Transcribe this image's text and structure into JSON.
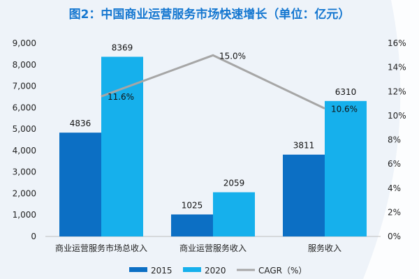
{
  "title": "图2：中国商业运营服务市场快速增长（单位：亿元）",
  "chart_data": {
    "type": "bar",
    "title": "图2：中国商业运营服务市场快速增长（单位：亿元）",
    "categories": [
      "商业运营服务市场总收入",
      "商业运营服务收入",
      "服务收入"
    ],
    "series": [
      {
        "name": "2015",
        "type": "bar",
        "axis": "left",
        "values": [
          4836,
          1025,
          3811
        ],
        "color": "#0c6fc4"
      },
      {
        "name": "2020",
        "type": "bar",
        "axis": "left",
        "values": [
          8369,
          2059,
          6310
        ],
        "color": "#16b0ec"
      },
      {
        "name": "CAGR（%）",
        "type": "line",
        "axis": "right",
        "values": [
          11.6,
          15.0,
          10.6
        ],
        "labels": [
          "11.6%",
          "15.0%",
          "10.6%"
        ],
        "color": "#a6a6a6"
      }
    ],
    "ylim": [
      0,
      9000
    ],
    "yticks": [
      "0",
      "1,000",
      "2,000",
      "3,000",
      "4,000",
      "5,000",
      "6,000",
      "7,000",
      "8,000",
      "9,000"
    ],
    "y2lim": [
      0,
      16
    ],
    "y2ticks": [
      "0%",
      "2%",
      "4%",
      "6%",
      "8%",
      "10%",
      "12%",
      "14%",
      "16%"
    ],
    "grid": false,
    "legend": "bottom"
  }
}
